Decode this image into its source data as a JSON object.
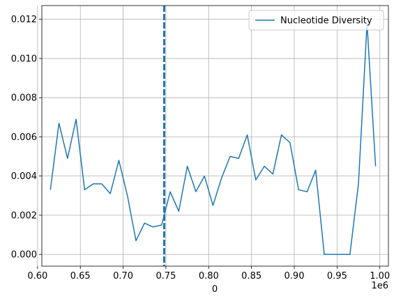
{
  "chart_data": {
    "type": "line",
    "title": "",
    "xlabel": "0",
    "ylabel": "",
    "x_offset_label": "1e6",
    "x_scale": 1000000,
    "xlim": [
      605000,
      1010000
    ],
    "ylim": [
      -0.0006,
      0.0127
    ],
    "x_ticks": [
      600000,
      650000,
      700000,
      750000,
      800000,
      850000,
      900000,
      950000,
      1000000
    ],
    "x_tick_labels": [
      "0.60",
      "0.65",
      "0.70",
      "0.75",
      "0.80",
      "0.85",
      "0.90",
      "0.95",
      "1.00"
    ],
    "y_ticks": [
      0,
      0.002,
      0.004,
      0.006,
      0.008,
      0.01,
      0.012
    ],
    "y_tick_labels": [
      "0.000",
      "0.002",
      "0.004",
      "0.006",
      "0.008",
      "0.010",
      "0.012"
    ],
    "grid": true,
    "legend_position": "top-right",
    "series": [
      {
        "name": "Nucleotide Diversity",
        "color": "#1f77b4",
        "x": [
          615000,
          625000,
          635000,
          645000,
          655000,
          665000,
          675000,
          685000,
          695000,
          705000,
          715000,
          725000,
          735000,
          745000,
          755000,
          765000,
          775000,
          785000,
          795000,
          805000,
          815000,
          825000,
          835000,
          845000,
          855000,
          865000,
          875000,
          885000,
          895000,
          905000,
          915000,
          925000,
          935000,
          945000,
          955000,
          965000,
          975000,
          985000,
          995000
        ],
        "values": [
          0.0033,
          0.0067,
          0.0049,
          0.0069,
          0.0033,
          0.0036,
          0.0036,
          0.0031,
          0.0048,
          0.003,
          0.0007,
          0.0016,
          0.0014,
          0.0015,
          0.0032,
          0.0022,
          0.0045,
          0.0032,
          0.004,
          0.0025,
          0.0039,
          0.005,
          0.0049,
          0.0061,
          0.0038,
          0.0045,
          0.0041,
          0.0061,
          0.0057,
          0.0033,
          0.0032,
          0.0043,
          0.0,
          0.0,
          0.0,
          0.0,
          0.0036,
          0.0118,
          0.0045
        ]
      }
    ],
    "annotations": [
      {
        "type": "vline",
        "x": 748000,
        "color": "#1f77b4",
        "style": "dashed"
      }
    ]
  }
}
